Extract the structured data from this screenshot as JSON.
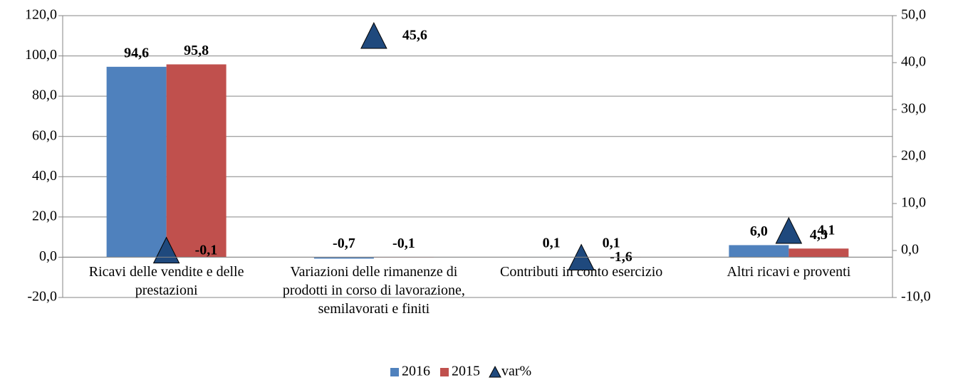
{
  "chart_data": {
    "type": "bar",
    "categories": [
      "Ricavi delle vendite e delle prestazioni",
      "Variazioni delle rimanenze di prodotti in corso di lavorazione, semilavorati e finiti",
      "Contributi in conto esercizio",
      "Altri ricavi e proventi"
    ],
    "series": [
      {
        "name": "2016",
        "color": "#4f81bd",
        "values": [
          94.6,
          -0.7,
          0.1,
          6.0
        ],
        "value_labels": [
          "94,6",
          "-0,7",
          "0,1",
          "6,0"
        ]
      },
      {
        "name": "2015",
        "color": "#c0504d",
        "values": [
          95.8,
          -0.1,
          0.1,
          4.3
        ],
        "value_labels": [
          "95,8",
          "-0,1",
          "0,1",
          "4,3"
        ]
      },
      {
        "name": "var%",
        "color": "#1f497d",
        "type": "triangle",
        "axis": "y2",
        "values": [
          -0.1,
          45.6,
          -1.6,
          4.1
        ],
        "value_labels": [
          "-0,1",
          "45,6",
          "-1,6",
          "4,1"
        ]
      }
    ],
    "ylim": [
      -20,
      120
    ],
    "yticks": [
      {
        "value": -20,
        "label": "-20,0"
      },
      {
        "value": 0,
        "label": "0,0"
      },
      {
        "value": 20,
        "label": "20,0"
      },
      {
        "value": 40,
        "label": "40,0"
      },
      {
        "value": 60,
        "label": "60,0"
      },
      {
        "value": 80,
        "label": "80,0"
      },
      {
        "value": 100,
        "label": "100,0"
      },
      {
        "value": 120,
        "label": "120,0"
      }
    ],
    "y2lim": [
      -10,
      50
    ],
    "y2ticks": [
      {
        "value": -10,
        "label": "-10,0"
      },
      {
        "value": 0,
        "label": "0,0"
      },
      {
        "value": 10,
        "label": "10,0"
      },
      {
        "value": 20,
        "label": "20,0"
      },
      {
        "value": 30,
        "label": "30,0"
      },
      {
        "value": 40,
        "label": "40,0"
      },
      {
        "value": 50,
        "label": "50,0"
      }
    ],
    "grid": true,
    "legend": "bottom"
  }
}
